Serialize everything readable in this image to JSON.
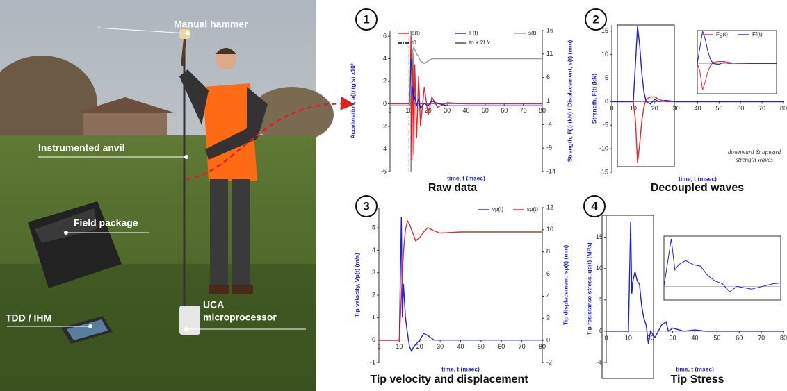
{
  "photo": {
    "labels": [
      "Manual hammer",
      "Instrumented anvil",
      "Field package",
      "TDD / IHM",
      "UCA",
      "microprocessor"
    ]
  },
  "chart_data": [
    {
      "type": "line",
      "badge": "1",
      "caption": "Raw data",
      "xlabel": "time, t (msec)",
      "ylabel": "Acceleration, a(t) (g's) x10³",
      "y2label": "Strength, F(t) (kN) / Displacement, s(t) (mm)",
      "xlim": [
        0,
        80
      ],
      "xticks": [
        0,
        10,
        20,
        30,
        40,
        50,
        60,
        70,
        80
      ],
      "ylim": [
        -6,
        6.5
      ],
      "yticks": [
        -6,
        -4,
        -2,
        0,
        2,
        4,
        6
      ],
      "y2lim": [
        -14,
        16
      ],
      "y2ticks": [
        -14,
        -9,
        -4,
        1,
        6,
        11,
        16
      ],
      "x": [
        0,
        10,
        10.5,
        11,
        11.5,
        12,
        12.5,
        13,
        14,
        15,
        16,
        18,
        20,
        22,
        25,
        30,
        40,
        50,
        60,
        70,
        80
      ],
      "series": [
        {
          "name": "a(t)",
          "color": "#e8262a",
          "values": [
            0,
            0,
            0,
            6,
            -5,
            4.5,
            -4.5,
            3.5,
            -3,
            2.5,
            -2,
            1.5,
            -1,
            0.6,
            -0.3,
            0.1,
            0,
            0,
            0,
            0,
            0
          ]
        },
        {
          "name": "F(t)",
          "color": "#1f1fe0",
          "axis": "y2",
          "values": [
            0,
            0,
            0,
            10,
            2,
            4,
            1,
            2,
            0,
            1.5,
            -0.5,
            0.5,
            0,
            1,
            0.5,
            0,
            0,
            0,
            0,
            0,
            0
          ]
        },
        {
          "name": "s(t)",
          "color": "#9a9a9a",
          "axis": "y2",
          "values": [
            0,
            0,
            0,
            4,
            8,
            12,
            12.5,
            12,
            11,
            10.5,
            9.5,
            9,
            9.5,
            10,
            10,
            10,
            10,
            10,
            10,
            10,
            10
          ]
        }
      ],
      "markers": [
        {
          "name": "t0",
          "x": 10,
          "color": "#000000",
          "dash": "dashdot"
        },
        {
          "name": "to + 2L/c",
          "x": 11,
          "color": "#444444",
          "dash": "solid"
        }
      ]
    },
    {
      "type": "line",
      "badge": "2",
      "caption": "Decoupled waves",
      "xlabel": "time, t (msec)",
      "ylabel": "Strength, F(t) (kN)",
      "annotation": [
        "downward & upward",
        "strength waves"
      ],
      "xlim": [
        0,
        80
      ],
      "xticks": [
        0,
        10,
        20,
        30,
        40,
        50,
        60,
        70,
        80
      ],
      "ylim": [
        -15,
        16.3
      ],
      "yticks": [
        -15,
        -10,
        -5,
        0,
        5,
        10,
        15
      ],
      "x": [
        0,
        10,
        11,
        12,
        13,
        14,
        15,
        16,
        18,
        20,
        22,
        25,
        30,
        35,
        40,
        50,
        60,
        70,
        80
      ],
      "series": [
        {
          "name": "Fg(t)",
          "color": "#e8262a",
          "values": [
            0,
            0,
            -4,
            -13,
            -9,
            -4,
            -1,
            0.5,
            1,
            1,
            0.5,
            0,
            0,
            0,
            0,
            0,
            0,
            0,
            0
          ]
        },
        {
          "name": "Ff(t)",
          "color": "#1f1fe0",
          "values": [
            0,
            0,
            8,
            16,
            12,
            6,
            2,
            0,
            -0.5,
            0.5,
            0,
            0.3,
            0,
            0,
            0,
            0,
            0,
            0,
            0
          ]
        }
      ]
    },
    {
      "type": "line",
      "badge": "3",
      "caption": "Tip velocity and displacement",
      "xlabel": "time, t (msec)",
      "ylabel": "Tip velocity, Vp(t) (m/s)",
      "y2label": "Tip displacement, sp(t) (mm)",
      "xlim": [
        0,
        80
      ],
      "xticks": [
        0,
        10,
        20,
        30,
        40,
        50,
        60,
        70,
        80
      ],
      "ylim": [
        -1,
        5.9
      ],
      "yticks": [
        -1,
        0,
        1,
        2,
        3,
        4,
        5
      ],
      "y2lim": [
        -2,
        12
      ],
      "y2ticks": [
        -2,
        0,
        2,
        4,
        6,
        8,
        10,
        12
      ],
      "x": [
        0,
        10,
        11,
        11.5,
        12,
        13,
        14,
        15,
        16,
        17,
        18,
        20,
        22,
        24,
        27,
        30,
        40,
        50,
        60,
        70,
        80
      ],
      "series": [
        {
          "name": "vp(t)",
          "color": "#1f1fe0",
          "values": [
            0,
            0,
            5.5,
            1,
            2.5,
            1,
            0.3,
            -0.3,
            -0.5,
            -0.3,
            -0.2,
            0,
            0.3,
            0.2,
            0,
            0,
            0,
            0,
            0,
            0,
            0
          ]
        },
        {
          "name": "sp(t)",
          "color": "#e8262a",
          "axis": "y2",
          "values": [
            0,
            0,
            4,
            6,
            8,
            10,
            10.8,
            10.5,
            10,
            9.5,
            9,
            9.3,
            9.8,
            10.2,
            9.9,
            9.7,
            9.8,
            9.8,
            9.8,
            9.8,
            9.8
          ]
        }
      ]
    },
    {
      "type": "line",
      "badge": "4",
      "caption": "Tip Stress",
      "xlabel": "time, t (msec)",
      "ylabel": "Tip resistance stress, qd(t) (MPa)",
      "xlim": [
        0,
        80
      ],
      "xticks": [
        0,
        10,
        20,
        30,
        40,
        50,
        60,
        70,
        80
      ],
      "ylim": [
        -5,
        18.5
      ],
      "yticks": [
        -5,
        0,
        5,
        10,
        15
      ],
      "x": [
        0,
        10,
        11,
        11.5,
        12,
        13,
        14,
        15,
        16,
        17,
        18,
        19,
        20,
        22,
        25,
        27,
        28,
        30,
        35,
        40,
        45,
        50,
        60,
        70,
        80
      ],
      "series": [
        {
          "color": "#1f1fe0",
          "values": [
            0,
            0,
            17.5,
            6,
            8,
            9.5,
            8,
            7.5,
            4,
            2,
            1,
            -2,
            0,
            -1,
            1,
            1.5,
            0,
            0.5,
            0,
            0.2,
            0,
            0,
            0,
            0,
            0
          ]
        }
      ]
    }
  ]
}
